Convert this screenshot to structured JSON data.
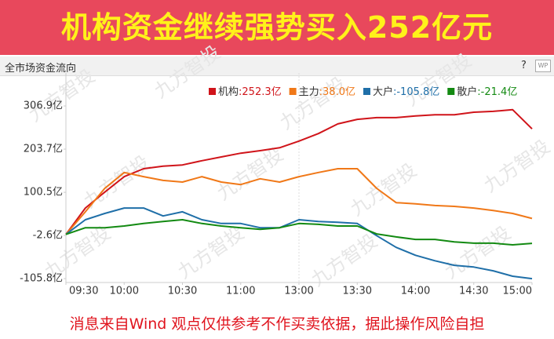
{
  "header": {
    "banner": "机构资金继续强势买入252亿元",
    "panel_title": "全市场资金流向",
    "help": "?",
    "icon": "WP"
  },
  "chart_data": {
    "type": "line",
    "categories": [
      "09:30",
      null,
      null,
      "10:00",
      null,
      null,
      "10:30",
      null,
      null,
      "11:00",
      null,
      null,
      "13:00",
      null,
      null,
      "13:30",
      null,
      null,
      "14:00",
      null,
      null,
      "14:30",
      null,
      null,
      "15:00"
    ],
    "series": [
      {
        "name": "机构:252.3亿",
        "color": "#d0141a",
        "values": [
          0,
          63,
          101,
          138,
          157,
          163,
          166,
          176,
          185,
          194,
          200,
          207,
          223,
          241,
          264,
          275,
          279,
          279,
          283,
          286,
          286,
          292,
          294,
          298,
          252.3
        ]
      },
      {
        "name": "主力:38.0亿",
        "color": "#f07818",
        "values": [
          0,
          54,
          110,
          148,
          138,
          129,
          125,
          138,
          125,
          119,
          133,
          125,
          138,
          148,
          157,
          157,
          110,
          76,
          73,
          69,
          67,
          63,
          57,
          50,
          38.0
        ]
      },
      {
        "name": "大户:-105.8亿",
        "color": "#1f6fa8",
        "values": [
          0,
          35,
          50,
          63,
          63,
          44,
          54,
          35,
          26,
          26,
          16,
          16,
          35,
          31,
          29,
          26,
          -3,
          -31,
          -50,
          -63,
          -74,
          -78,
          -87,
          -100,
          -105.8
        ]
      },
      {
        "name": "散户:-21.4亿",
        "color": "#138a12",
        "values": [
          0,
          16,
          16,
          20,
          26,
          31,
          35,
          26,
          20,
          16,
          12,
          16,
          26,
          24,
          20,
          20,
          1,
          -6,
          -12,
          -12,
          -18,
          -21,
          -21,
          -25,
          -21.4
        ]
      }
    ],
    "ylim": [
      -115,
      367
    ],
    "yticks": [
      {
        "value": 306.9,
        "label": "306.9亿"
      },
      {
        "value": 203.7,
        "label": "203.7亿"
      },
      {
        "value": 100.5,
        "label": "100.5亿"
      },
      {
        "value": -2.6,
        "label": "-2.6亿"
      },
      {
        "value": -105.8,
        "label": "-105.8亿"
      }
    ],
    "watermark": "九方智投"
  },
  "footer": {
    "disclaimer": "消息来自Wind  观点仅供参考不作买卖依据，据此操作风险自担"
  }
}
